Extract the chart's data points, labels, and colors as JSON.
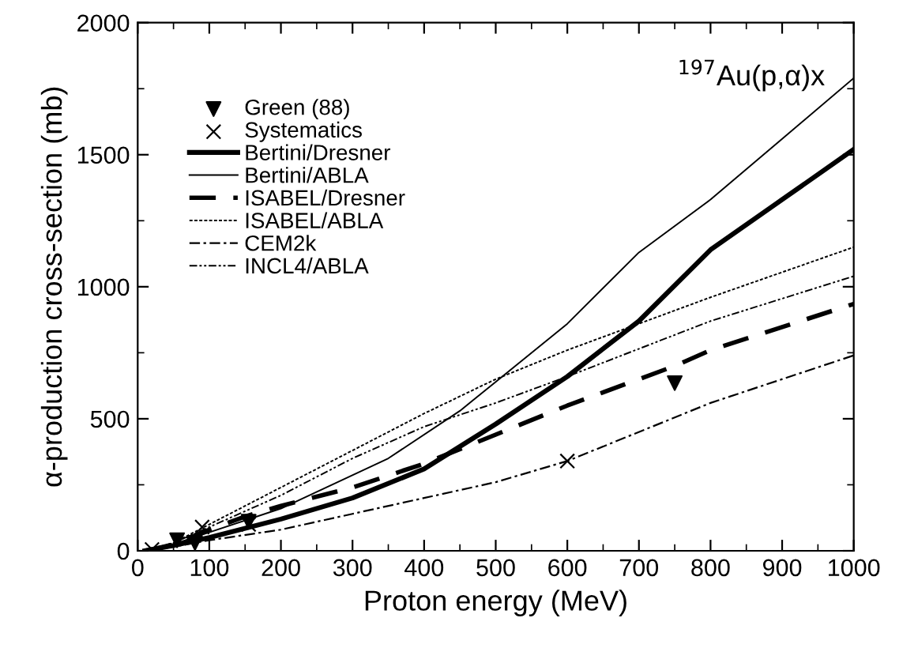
{
  "chart_data": {
    "type": "line",
    "xlabel": "Proton energy (MeV)",
    "ylabel": "α-production cross-section (mb)",
    "annotations": [
      {
        "text": "$^{197}$Au(p,α)x"
      }
    ],
    "xlim": [
      0,
      1000
    ],
    "xticks": [
      0,
      100,
      200,
      300,
      400,
      500,
      600,
      700,
      800,
      900,
      1000
    ],
    "ylim": [
      0,
      2000
    ],
    "yticks": [
      0,
      500,
      1000,
      1500,
      2000
    ],
    "grid": false,
    "legend": "top left",
    "series": [
      {
        "name": "Green (88)",
        "type": "scatter",
        "marker": "triangle",
        "color": "#000000",
        "x": [
          55,
          80,
          155,
          750
        ],
        "values": [
          40,
          30,
          110,
          635
        ]
      },
      {
        "name": "Systematics",
        "type": "scatter",
        "marker": "cross",
        "color": "#000000",
        "x": [
          20,
          90,
          155,
          600
        ],
        "values": [
          5,
          90,
          100,
          340
        ]
      },
      {
        "name": "Bertini/Dresner",
        "line_style": "solid",
        "color": "#000000",
        "x": [
          10,
          20,
          50,
          100,
          200,
          300,
          400,
          500,
          600,
          700,
          800,
          900,
          1000
        ],
        "values": [
          0,
          5,
          20,
          50,
          120,
          200,
          310,
          480,
          660,
          870,
          1140,
          1330,
          1520
        ]
      },
      {
        "name": "Bertini/ABLA",
        "line_style": "solid",
        "color": "#000000",
        "x": [
          10,
          20,
          50,
          100,
          200,
          350,
          450,
          500,
          600,
          700,
          800,
          900,
          1000
        ],
        "values": [
          0,
          5,
          25,
          70,
          160,
          350,
          530,
          640,
          860,
          1130,
          1330,
          1560,
          1790
        ]
      },
      {
        "name": "ISABEL/Dresner",
        "line_style": "dashed",
        "color": "#000000",
        "x": [
          10,
          20,
          50,
          100,
          150,
          200,
          300,
          400,
          500,
          600,
          750,
          800,
          1000
        ],
        "values": [
          0,
          5,
          25,
          80,
          130,
          170,
          240,
          330,
          440,
          550,
          700,
          760,
          935
        ]
      },
      {
        "name": "ISABEL/ABLA",
        "line_style": "dotted",
        "color": "#000000",
        "x": [
          10,
          20,
          50,
          100,
          200,
          300,
          400,
          500,
          600,
          800,
          1000
        ],
        "values": [
          0,
          5,
          30,
          100,
          240,
          380,
          520,
          650,
          760,
          960,
          1150
        ]
      },
      {
        "name": "CEM2k",
        "line_style": "dashdot",
        "color": "#000000",
        "x": [
          10,
          20,
          50,
          100,
          200,
          300,
          400,
          500,
          600,
          800,
          1000
        ],
        "values": [
          0,
          3,
          15,
          40,
          80,
          140,
          200,
          260,
          340,
          560,
          740
        ]
      },
      {
        "name": "INCL4/ABLA",
        "line_style": "dashdotdot",
        "color": "#000000",
        "x": [
          10,
          20,
          50,
          100,
          200,
          300,
          400,
          500,
          600,
          800,
          1000
        ],
        "values": [
          0,
          5,
          30,
          90,
          210,
          350,
          470,
          560,
          660,
          870,
          1040
        ]
      }
    ]
  }
}
